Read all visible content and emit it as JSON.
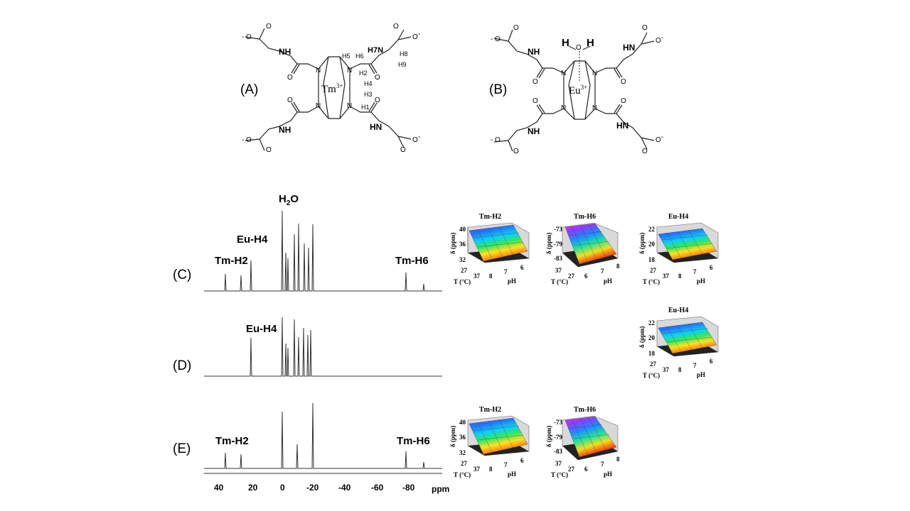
{
  "structures": {
    "A": {
      "label": "(A)",
      "metal": "Tm",
      "charge": "3+",
      "protons": [
        "H5",
        "H6",
        "H7",
        "H8",
        "H9",
        "H2",
        "H4",
        "H3",
        "H1"
      ]
    },
    "B": {
      "label": "(B)",
      "metal": "Eu",
      "charge": "3+",
      "water": [
        "H",
        "O",
        "H"
      ]
    }
  },
  "atoms": {
    "O": "O",
    "N": "N",
    "H": "H",
    "minus": "-"
  },
  "spectra": [
    {
      "label": "(C)",
      "peak_labels": [
        "H2O",
        "Eu-H4",
        "Tm-H2",
        "Tm-H6"
      ]
    },
    {
      "label": "(D)",
      "peak_labels": [
        "Eu-H4"
      ]
    },
    {
      "label": "(E)",
      "peak_labels": [
        "Tm-H2",
        "Tm-H6"
      ]
    }
  ],
  "spectrum_axis": {
    "ticks": [
      "40",
      "20",
      "0",
      "-20",
      "-40",
      "-60",
      "-80"
    ],
    "unit": "ppm"
  },
  "surface_plots": [
    {
      "id": "C-Tm-H2",
      "title": "Tm-H2",
      "z_ticks": [
        "40",
        "36",
        "32"
      ],
      "t_ticks": [
        "27",
        "37"
      ],
      "ph_ticks": [
        "8",
        "7",
        "6"
      ]
    },
    {
      "id": "C-Tm-H6",
      "title": "Tm-H6",
      "z_ticks": [
        "-73",
        "-79",
        "-83"
      ],
      "t_ticks": [
        "37",
        "27"
      ],
      "ph_ticks": [
        "6",
        "7",
        "8"
      ]
    },
    {
      "id": "C-Eu-H4",
      "title": "Eu-H4",
      "z_ticks": [
        "22",
        "20",
        "18"
      ],
      "t_ticks": [
        "27",
        "37"
      ],
      "ph_ticks": [
        "8",
        "7",
        "6"
      ]
    },
    {
      "id": "D-Eu-H4",
      "title": "Eu-H4",
      "z_ticks": [
        "22",
        "20",
        "18"
      ],
      "t_ticks": [
        "27",
        "37"
      ],
      "ph_ticks": [
        "8",
        "7",
        "6"
      ]
    },
    {
      "id": "E-Tm-H2",
      "title": "Tm-H2",
      "z_ticks": [
        "40",
        "36",
        "32"
      ],
      "t_ticks": [
        "27",
        "37"
      ],
      "ph_ticks": [
        "8",
        "7",
        "6"
      ]
    },
    {
      "id": "E-Tm-H6",
      "title": "Tm-H6",
      "z_ticks": [
        "-73",
        "-79",
        "-83"
      ],
      "t_ticks": [
        "37",
        "27"
      ],
      "ph_ticks": [
        "6",
        "7",
        "8"
      ]
    }
  ],
  "surface_axis_labels": {
    "z": "δ (ppm)",
    "t": "T (°C)",
    "ph": "pH"
  }
}
